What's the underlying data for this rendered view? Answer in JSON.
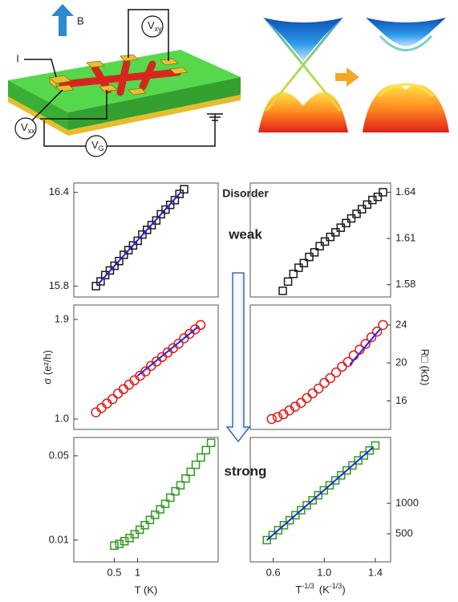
{
  "schematic": {
    "field": "B",
    "current": "I",
    "probes": [
      {
        "v": "V",
        "sub": "xy"
      },
      {
        "v": "V",
        "sub": "xx"
      },
      {
        "v": "V",
        "sub": "G"
      }
    ]
  },
  "annotations": [
    "Disorder",
    "weak",
    "strong"
  ],
  "chart_data": [
    {
      "type": "scatter",
      "xscale": "log",
      "xlim": [
        0.15,
        11
      ],
      "ylim": [
        15.73,
        16.46
      ],
      "yticks": [
        16.4,
        15.8
      ],
      "series": [
        {
          "marker": "square",
          "color": "#1a1a1a",
          "x": [
            0.29,
            0.333,
            0.382,
            0.439,
            0.504,
            0.578,
            0.664,
            0.762,
            0.875,
            1.005,
            1.153,
            1.324,
            1.52,
            1.745,
            2.003,
            2.3,
            2.64,
            3.031,
            3.48,
            3.995
          ],
          "values": [
            15.8,
            15.83,
            15.87,
            15.9,
            15.93,
            15.96,
            16.0,
            16.03,
            16.06,
            16.09,
            16.13,
            16.16,
            16.19,
            16.22,
            16.26,
            16.29,
            16.32,
            16.35,
            16.39,
            16.42
          ]
        },
        {
          "marker": "line",
          "color": "#2626e0",
          "x": [
            0.32,
            3.6
          ],
          "values": [
            15.82,
            16.4
          ]
        }
      ]
    },
    {
      "type": "scatter",
      "xlim": [
        0.42,
        1.52
      ],
      "ylim": [
        1.572,
        1.646
      ],
      "yticks": [
        1.64,
        1.61,
        1.58
      ],
      "series": [
        {
          "marker": "square",
          "color": "#1a1a1a",
          "x": [
            0.675,
            0.716,
            0.758,
            0.799,
            0.84,
            0.882,
            0.923,
            0.964,
            1.005,
            1.047,
            1.088,
            1.129,
            1.171,
            1.212,
            1.253,
            1.295,
            1.336,
            1.377,
            1.419,
            1.46
          ],
          "values": [
            1.576,
            1.582,
            1.587,
            1.591,
            1.594,
            1.598,
            1.601,
            1.605,
            1.608,
            1.611,
            1.614,
            1.617,
            1.62,
            1.623,
            1.626,
            1.629,
            1.632,
            1.635,
            1.637,
            1.64
          ]
        }
      ]
    },
    {
      "type": "scatter",
      "xscale": "log",
      "xlim": [
        0.15,
        11
      ],
      "ylim": [
        0.906,
        2.03
      ],
      "yticks": [
        1.9,
        {
          "value": 1,
          "label": "1.0"
        }
      ],
      "ylabel": "σ (e²/h)",
      "series": [
        {
          "marker": "circle",
          "color": "#e01b1b",
          "x": [
            0.29,
            0.342,
            0.402,
            0.474,
            0.558,
            0.658,
            0.775,
            0.913,
            1.075,
            1.267,
            1.492,
            1.758,
            2.071,
            2.44,
            2.874,
            3.386,
            3.989,
            4.699,
            5.535,
            6.52
          ],
          "values": [
            1.06,
            1.1,
            1.14,
            1.18,
            1.23,
            1.27,
            1.31,
            1.35,
            1.39,
            1.43,
            1.48,
            1.52,
            1.56,
            1.6,
            1.64,
            1.68,
            1.73,
            1.77,
            1.81,
            1.85
          ]
        },
        {
          "marker": "line",
          "color": "#2626e0",
          "x": [
            1.0,
            6.0
          ],
          "values": [
            1.39,
            1.83
          ]
        }
      ]
    },
    {
      "type": "scatter",
      "xlim": [
        0.42,
        1.52
      ],
      "ylim": [
        13.0,
        26.1
      ],
      "yticks": [
        24,
        20,
        16
      ],
      "ylabel": "R□ (kΩ)",
      "series": [
        {
          "marker": "circle",
          "color": "#e01b1b",
          "x": [
            0.588,
            0.634,
            0.68,
            0.726,
            0.772,
            0.818,
            0.863,
            0.909,
            0.955,
            1.001,
            1.047,
            1.093,
            1.139,
            1.185,
            1.231,
            1.277,
            1.323,
            1.369,
            1.414,
            1.46
          ],
          "values": [
            14.1,
            14.3,
            14.6,
            15.0,
            15.4,
            15.8,
            16.3,
            16.8,
            17.3,
            17.9,
            18.4,
            19.0,
            19.6,
            20.1,
            20.8,
            21.4,
            22.0,
            22.7,
            23.3,
            24.0
          ]
        },
        {
          "marker": "line",
          "color": "#2626e0",
          "x": [
            1.2,
            1.44
          ],
          "values": [
            19.8,
            23.6
          ]
        }
      ]
    },
    {
      "type": "scatter",
      "xscale": "log",
      "yscale": "log",
      "xlim": [
        0.15,
        11
      ],
      "xticks": [
        0.5,
        1
      ],
      "ylim": [
        0.0066,
        0.071
      ],
      "yticks": [
        0.05,
        0.01
      ],
      "xlabel": "T (K)",
      "series": [
        {
          "marker": "square",
          "color": "#2f9a1f",
          "x": [
            0.5,
            0.582,
            0.677,
            0.788,
            0.917,
            1.067,
            1.241,
            1.444,
            1.681,
            1.955,
            2.275,
            2.648,
            3.081,
            3.585,
            4.172,
            4.854,
            5.648,
            6.572,
            7.647,
            8.9
          ],
          "values": [
            0.009,
            0.0093,
            0.0098,
            0.0104,
            0.0112,
            0.0122,
            0.0133,
            0.0147,
            0.0162,
            0.018,
            0.02,
            0.0225,
            0.0254,
            0.0285,
            0.0324,
            0.0368,
            0.0421,
            0.0484,
            0.0557,
            0.0641
          ]
        }
      ]
    },
    {
      "type": "scatter",
      "yscale": "log",
      "xlim": [
        0.42,
        1.52
      ],
      "xticks": [
        0.6,
        {
          "value": 1,
          "label": "1.0"
        },
        1.4
      ],
      "ylim": [
        264,
        4480
      ],
      "yticks": [
        1000,
        500
      ],
      "xlabel": {
        "text": "T",
        "sup": "-1/3",
        "unit": "(K",
        "unit_sup": "-1/3",
        "close": ")"
      },
      "series": [
        {
          "marker": "square",
          "color": "#2f9a1f",
          "x": [
            0.55,
            0.595,
            0.639,
            0.684,
            0.729,
            0.774,
            0.818,
            0.863,
            0.908,
            0.953,
            0.997,
            1.042,
            1.087,
            1.132,
            1.176,
            1.221,
            1.266,
            1.311,
            1.355,
            1.4
          ],
          "values": [
            433,
            485,
            543,
            608,
            681,
            763,
            855,
            957,
            1072,
            1201,
            1345,
            1507,
            1688,
            1890,
            2117,
            2371,
            2656,
            2975,
            3332,
            3732
          ]
        },
        {
          "marker": "line",
          "color": "#2626e0",
          "x": [
            0.55,
            1.38
          ],
          "values": [
            433,
            3550
          ]
        }
      ]
    }
  ]
}
